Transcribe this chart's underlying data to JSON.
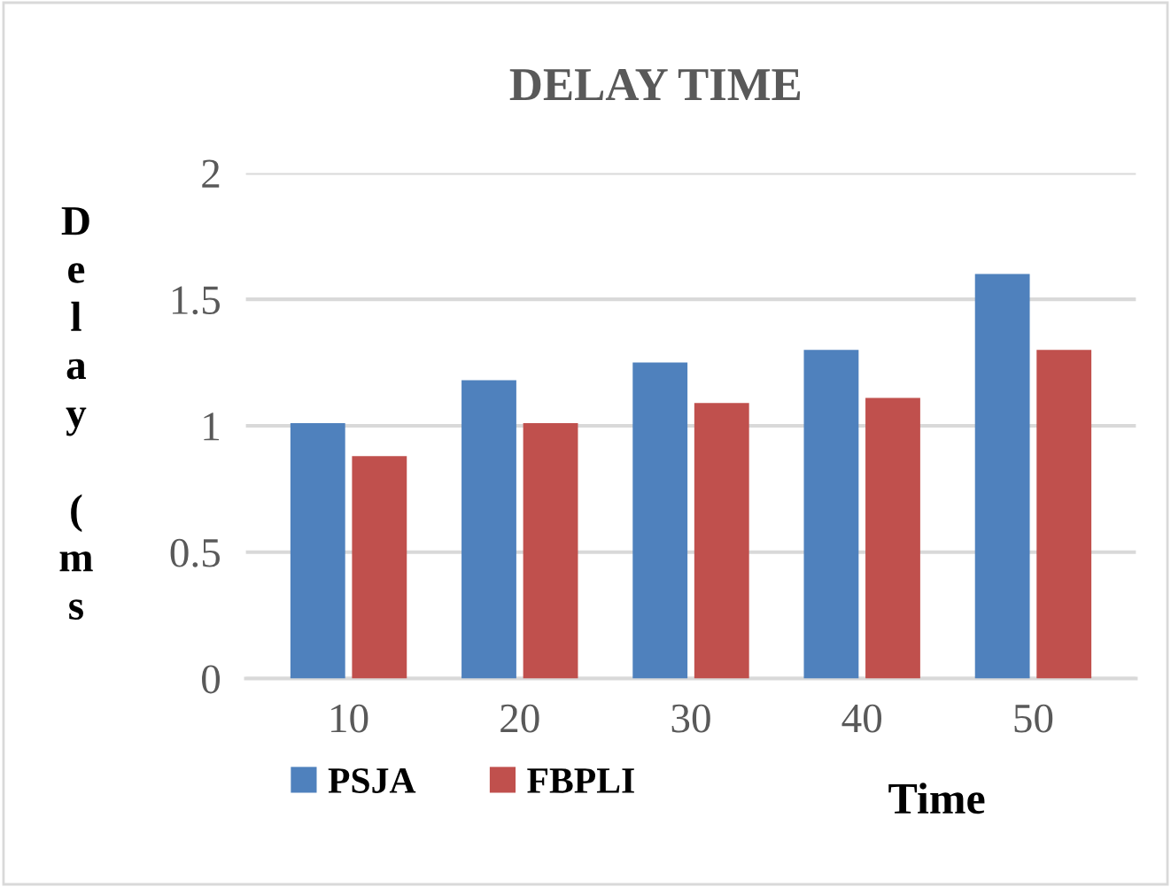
{
  "chart_data": {
    "type": "bar",
    "title": "DELAY TIME",
    "xlabel": "Time",
    "ylabel": "Delay (ms",
    "categories": [
      "10",
      "20",
      "30",
      "40",
      "50"
    ],
    "series": [
      {
        "name": "PSJA",
        "color": "#4f81bd",
        "values": [
          1.01,
          1.18,
          1.25,
          1.3,
          1.6
        ]
      },
      {
        "name": "FBPLI",
        "color": "#c0504d",
        "values": [
          0.88,
          1.01,
          1.09,
          1.11,
          1.3
        ]
      }
    ],
    "ylim": [
      0,
      2
    ],
    "yticks": [
      0,
      0.5,
      1,
      1.5,
      2
    ],
    "grid": "y",
    "legend": "bottom left"
  }
}
